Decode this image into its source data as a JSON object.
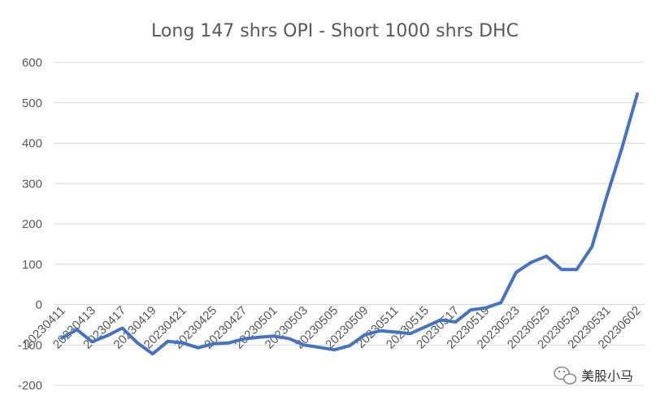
{
  "chart_data": {
    "type": "line",
    "title": "Long 147 shrs OPI  - Short 1000 shrs DHC",
    "xlabel": "",
    "ylabel": "",
    "ylim": [
      -200,
      600
    ],
    "yticks": [
      600,
      500,
      400,
      300,
      200,
      100,
      0,
      -100,
      -200
    ],
    "grid": true,
    "legend": "none",
    "x_tick_labels": [
      "20230411",
      "20230413",
      "20230417",
      "20230419",
      "20230421",
      "20230425",
      "20230427",
      "20230501",
      "20230503",
      "20230505",
      "20230509",
      "20230511",
      "20230515",
      "20230517",
      "20230519",
      "20230523",
      "20230525",
      "20230529",
      "20230531",
      "20230602"
    ],
    "x": [
      "20230411",
      "20230412",
      "20230413",
      "20230414",
      "20230417",
      "20230418",
      "20230419",
      "20230420",
      "20230421",
      "20230424",
      "20230425",
      "20230426",
      "20230427",
      "20230428",
      "20230501",
      "20230502",
      "20230503",
      "20230504",
      "20230505",
      "20230508",
      "20230509",
      "20230510",
      "20230511",
      "20230512",
      "20230515",
      "20230516",
      "20230517",
      "20230518",
      "20230519",
      "20230522",
      "20230523",
      "20230524",
      "20230525",
      "20230526",
      "20230529",
      "20230530",
      "20230531",
      "20230601",
      "20230602"
    ],
    "series": [
      {
        "color": "#4472c4",
        "values": [
          -83,
          -62,
          -92,
          -77,
          -58,
          -95,
          -122,
          -91,
          -95,
          -107,
          -97,
          -95,
          -85,
          -81,
          -78,
          -84,
          -100,
          -106,
          -112,
          -102,
          -75,
          -65,
          -68,
          -72,
          -55,
          -38,
          -43,
          -13,
          -8,
          5,
          80,
          105,
          120,
          87,
          87,
          143,
          270,
          390,
          522
        ]
      }
    ],
    "watermark": {
      "icon": "wechat-icon",
      "text": "美股小马"
    }
  }
}
